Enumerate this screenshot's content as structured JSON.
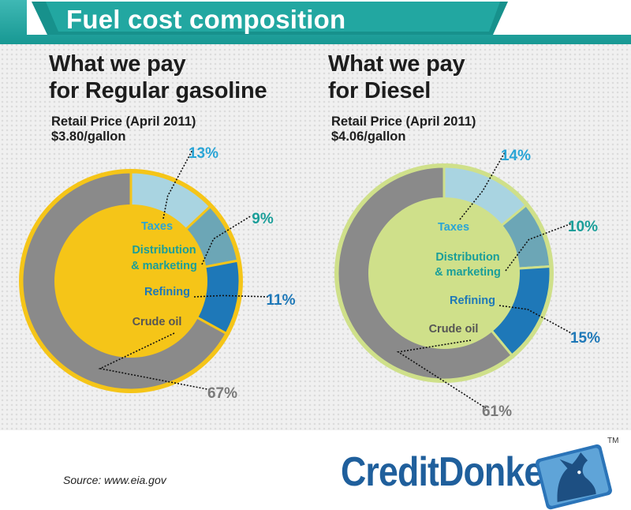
{
  "title": "Fuel cost composition",
  "colors": {
    "teal": "#1a9e99",
    "gas_center": "#f5c518",
    "diesel_center": "#cfe08a",
    "taxes": "#a9d4e1",
    "distribution": "#6ca6b6",
    "refining": "#1e78b8",
    "crude": "#8a8a8a",
    "brand": "#1f5f9c"
  },
  "labels": {
    "taxes": "Taxes",
    "distribution_line1": "Distribution",
    "distribution_line2": "& marketing",
    "refining": "Refining",
    "crude": "Crude oil"
  },
  "chart_data": [
    {
      "type": "pie",
      "heading_line1": "What we pay",
      "heading_line2": "for Regular gasoline",
      "subtitle_line1": "Retail Price (April 2011)",
      "subtitle_line2": "$3.80/gallon",
      "categories": [
        "Taxes",
        "Distribution & marketing",
        "Refining",
        "Crude oil"
      ],
      "values": [
        13,
        9,
        11,
        67
      ],
      "value_labels": [
        "13%",
        "9%",
        "11%",
        "67%"
      ]
    },
    {
      "type": "pie",
      "heading_line1": "What we pay",
      "heading_line2": "for Diesel",
      "subtitle_line1": "Retail Price (April 2011)",
      "subtitle_line2": "$4.06/gallon",
      "categories": [
        "Taxes",
        "Distribution & marketing",
        "Refining",
        "Crude oil"
      ],
      "values": [
        14,
        10,
        15,
        61
      ],
      "value_labels": [
        "14%",
        "10%",
        "15%",
        "61%"
      ]
    }
  ],
  "source": "Source: www.eia.gov",
  "brand": "CreditDonkey",
  "trademark": "TM"
}
